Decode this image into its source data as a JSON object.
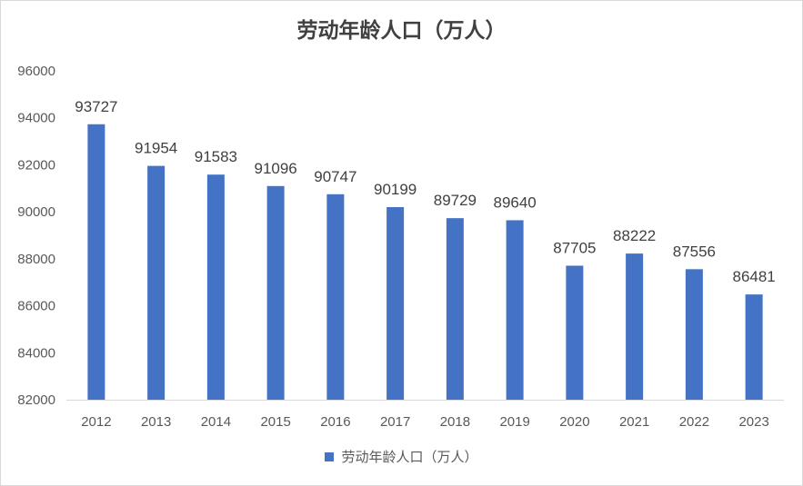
{
  "chart_data": {
    "type": "bar",
    "title": "劳动年龄人口（万人）",
    "categories": [
      "2012",
      "2013",
      "2014",
      "2015",
      "2016",
      "2017",
      "2018",
      "2019",
      "2020",
      "2021",
      "2022",
      "2023"
    ],
    "series": [
      {
        "name": "劳动年龄人口（万人）",
        "values": [
          93727,
          91954,
          91583,
          91096,
          90747,
          90199,
          89729,
          89640,
          87705,
          88222,
          87556,
          86481
        ],
        "color": "#4472c4"
      }
    ],
    "xlabel": "",
    "ylabel": "",
    "ylim": [
      82000,
      96000
    ],
    "yticks": [
      82000,
      84000,
      86000,
      88000,
      90000,
      92000,
      94000,
      96000
    ],
    "grid": false,
    "legend": "bottom"
  }
}
